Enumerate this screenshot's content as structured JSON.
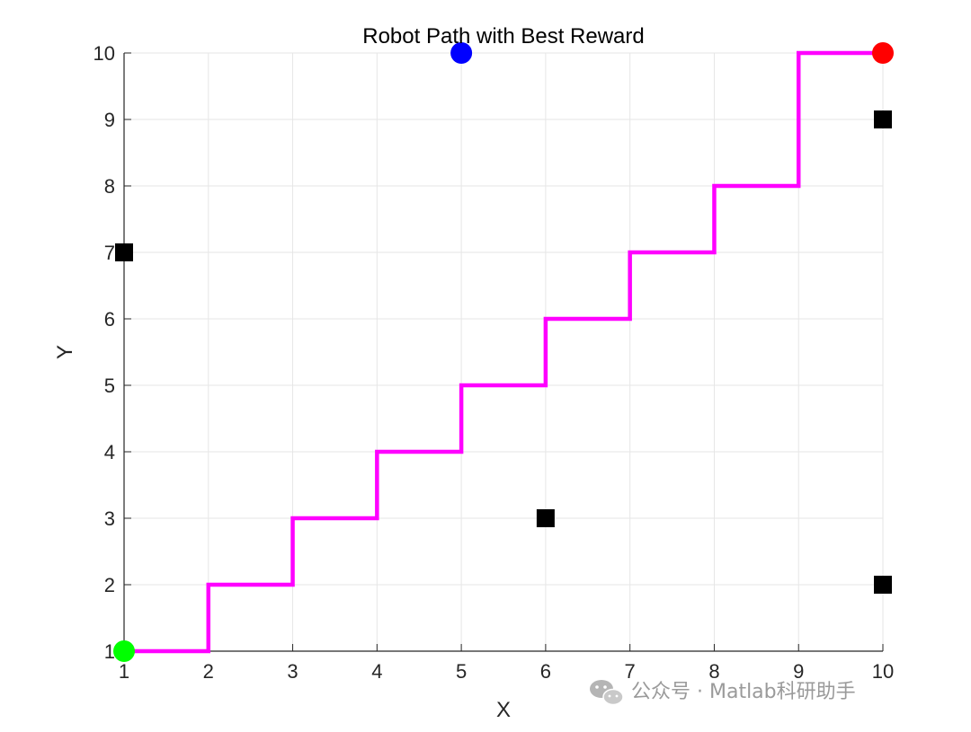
{
  "chart_data": {
    "type": "line",
    "title": "Robot Path with Best Reward",
    "xlabel": "X",
    "ylabel": "Y",
    "xlim": [
      1,
      10
    ],
    "ylim": [
      1,
      10
    ],
    "xticks": [
      "1",
      "2",
      "3",
      "4",
      "5",
      "6",
      "7",
      "8",
      "9",
      "10"
    ],
    "yticks": [
      "1",
      "2",
      "3",
      "4",
      "5",
      "6",
      "7",
      "8",
      "9",
      "10"
    ],
    "grid": true,
    "series": [
      {
        "kind": "path",
        "color": "#ff00ff",
        "points": [
          [
            1,
            1
          ],
          [
            2,
            1
          ],
          [
            2,
            2
          ],
          [
            3,
            2
          ],
          [
            3,
            3
          ],
          [
            4,
            3
          ],
          [
            4,
            4
          ],
          [
            5,
            4
          ],
          [
            5,
            5
          ],
          [
            6,
            5
          ],
          [
            6,
            6
          ],
          [
            7,
            6
          ],
          [
            7,
            7
          ],
          [
            8,
            7
          ],
          [
            8,
            8
          ],
          [
            9,
            8
          ],
          [
            9,
            10
          ],
          [
            10,
            10
          ]
        ]
      },
      {
        "kind": "start",
        "color": "#00ff00",
        "points": [
          [
            1,
            1
          ]
        ]
      },
      {
        "kind": "goal",
        "color": "#ff0000",
        "points": [
          [
            10,
            10
          ]
        ]
      },
      {
        "kind": "reward",
        "color": "#0000ff",
        "points": [
          [
            5,
            10
          ]
        ]
      },
      {
        "kind": "obstacles",
        "color": "#000000",
        "points": [
          [
            1,
            7
          ],
          [
            6,
            3
          ],
          [
            10,
            9
          ],
          [
            10,
            2
          ]
        ]
      }
    ]
  },
  "watermark": {
    "icon": "wechat-icon",
    "text": "公众号 · Matlab科研助手"
  }
}
